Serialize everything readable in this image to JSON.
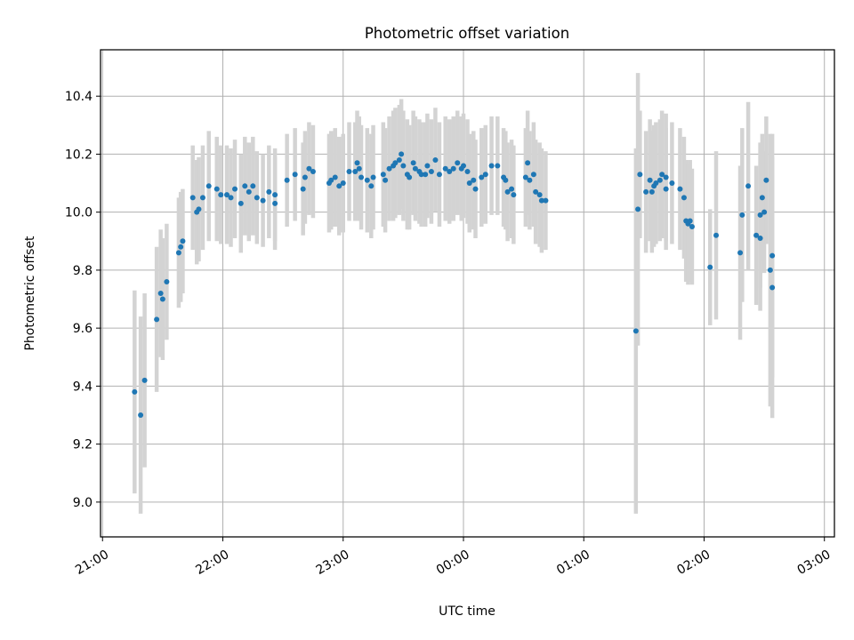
{
  "chart_data": {
    "type": "scatter",
    "title": "Photometric offset variation",
    "xlabel": "UTC time",
    "ylabel": "Photometric offset",
    "x_unit": "UTC",
    "x_ticks": [
      "21:00",
      "22:00",
      "23:00",
      "00:00",
      "01:00",
      "02:00",
      "03:00"
    ],
    "y_ticks": [
      "9.0",
      "9.2",
      "9.4",
      "9.6",
      "9.8",
      "10.0",
      "10.2",
      "10.4"
    ],
    "xlim": [
      "20:59",
      "03:05"
    ],
    "ylim": [
      8.88,
      10.56
    ],
    "grid": true,
    "colors": {
      "point": "#1f77b4",
      "errorbar": "#d3d3d3",
      "grid": "#b0b0b0"
    },
    "series": [
      {
        "points": [
          [
            "21:16",
            9.38,
            0.35
          ],
          [
            "21:19",
            9.3,
            0.34
          ],
          [
            "21:21",
            9.42,
            0.3
          ],
          [
            "21:27",
            9.63,
            0.25
          ],
          [
            "21:29",
            9.72,
            0.22
          ],
          [
            "21:30",
            9.7,
            0.21
          ],
          [
            "21:32",
            9.76,
            0.2
          ],
          [
            "21:38",
            9.86,
            0.19
          ],
          [
            "21:39",
            9.88,
            0.19
          ],
          [
            "21:40",
            9.9,
            0.18
          ],
          [
            "21:45",
            10.05,
            0.18
          ],
          [
            "21:47",
            10.0,
            0.18
          ],
          [
            "21:48",
            10.01,
            0.18
          ],
          [
            "21:50",
            10.05,
            0.18
          ],
          [
            "21:53",
            10.09,
            0.19
          ],
          [
            "21:57",
            10.08,
            0.18
          ],
          [
            "21:59",
            10.06,
            0.17
          ],
          [
            "22:02",
            10.06,
            0.17
          ],
          [
            "22:04",
            10.05,
            0.17
          ],
          [
            "22:06",
            10.08,
            0.17
          ],
          [
            "22:09",
            10.03,
            0.17
          ],
          [
            "22:11",
            10.09,
            0.17
          ],
          [
            "22:13",
            10.07,
            0.17
          ],
          [
            "22:15",
            10.09,
            0.17
          ],
          [
            "22:17",
            10.05,
            0.16
          ],
          [
            "22:20",
            10.04,
            0.16
          ],
          [
            "22:23",
            10.07,
            0.16
          ],
          [
            "22:26",
            10.06,
            0.16
          ],
          [
            "22:26",
            10.03,
            0.16
          ],
          [
            "22:32",
            10.11,
            0.16
          ],
          [
            "22:36",
            10.13,
            0.16
          ],
          [
            "22:40",
            10.08,
            0.16
          ],
          [
            "22:41",
            10.12,
            0.16
          ],
          [
            "22:43",
            10.15,
            0.16
          ],
          [
            "22:45",
            10.14,
            0.16
          ],
          [
            "22:53",
            10.1,
            0.17
          ],
          [
            "22:54",
            10.11,
            0.17
          ],
          [
            "22:56",
            10.12,
            0.17
          ],
          [
            "22:58",
            10.09,
            0.17
          ],
          [
            "23:00",
            10.1,
            0.17
          ],
          [
            "23:03",
            10.14,
            0.17
          ],
          [
            "23:06",
            10.14,
            0.17
          ],
          [
            "23:07",
            10.17,
            0.18
          ],
          [
            "23:08",
            10.15,
            0.18
          ],
          [
            "23:09",
            10.12,
            0.18
          ],
          [
            "23:12",
            10.11,
            0.18
          ],
          [
            "23:14",
            10.09,
            0.18
          ],
          [
            "23:15",
            10.12,
            0.18
          ],
          [
            "23:20",
            10.13,
            0.18
          ],
          [
            "23:21",
            10.11,
            0.18
          ],
          [
            "23:23",
            10.15,
            0.18
          ],
          [
            "23:25",
            10.16,
            0.19
          ],
          [
            "23:26",
            10.17,
            0.19
          ],
          [
            "23:28",
            10.18,
            0.19
          ],
          [
            "23:29",
            10.2,
            0.19
          ],
          [
            "23:30",
            10.16,
            0.19
          ],
          [
            "23:32",
            10.13,
            0.19
          ],
          [
            "23:33",
            10.12,
            0.18
          ],
          [
            "23:35",
            10.17,
            0.18
          ],
          [
            "23:36",
            10.15,
            0.18
          ],
          [
            "23:38",
            10.14,
            0.18
          ],
          [
            "23:39",
            10.13,
            0.18
          ],
          [
            "23:41",
            10.13,
            0.18
          ],
          [
            "23:42",
            10.16,
            0.18
          ],
          [
            "23:44",
            10.14,
            0.18
          ],
          [
            "23:46",
            10.18,
            0.18
          ],
          [
            "23:48",
            10.13,
            0.18
          ],
          [
            "23:51",
            10.15,
            0.18
          ],
          [
            "23:53",
            10.14,
            0.18
          ],
          [
            "23:55",
            10.15,
            0.18
          ],
          [
            "23:57",
            10.17,
            0.18
          ],
          [
            "23:59",
            10.15,
            0.18
          ],
          [
            "00:00",
            10.16,
            0.18
          ],
          [
            "00:02",
            10.14,
            0.18
          ],
          [
            "00:03",
            10.1,
            0.17
          ],
          [
            "00:05",
            10.11,
            0.17
          ],
          [
            "00:06",
            10.08,
            0.17
          ],
          [
            "00:09",
            10.12,
            0.17
          ],
          [
            "00:11",
            10.13,
            0.17
          ],
          [
            "00:14",
            10.16,
            0.17
          ],
          [
            "00:17",
            10.16,
            0.17
          ],
          [
            "00:20",
            10.12,
            0.17
          ],
          [
            "00:21",
            10.11,
            0.17
          ],
          [
            "00:22",
            10.07,
            0.17
          ],
          [
            "00:24",
            10.08,
            0.17
          ],
          [
            "00:25",
            10.06,
            0.17
          ],
          [
            "00:31",
            10.12,
            0.17
          ],
          [
            "00:32",
            10.17,
            0.18
          ],
          [
            "00:33",
            10.11,
            0.17
          ],
          [
            "00:35",
            10.13,
            0.18
          ],
          [
            "00:36",
            10.07,
            0.18
          ],
          [
            "00:38",
            10.06,
            0.18
          ],
          [
            "00:39",
            10.04,
            0.18
          ],
          [
            "00:41",
            10.04,
            0.17
          ],
          [
            "01:26",
            9.59,
            0.63
          ],
          [
            "01:27",
            10.01,
            0.47
          ],
          [
            "01:28",
            10.13,
            0.22
          ],
          [
            "01:31",
            10.07,
            0.21
          ],
          [
            "01:33",
            10.11,
            0.21
          ],
          [
            "01:34",
            10.07,
            0.21
          ],
          [
            "01:35",
            10.09,
            0.21
          ],
          [
            "01:36",
            10.1,
            0.21
          ],
          [
            "01:38",
            10.11,
            0.21
          ],
          [
            "01:39",
            10.13,
            0.22
          ],
          [
            "01:41",
            10.12,
            0.22
          ],
          [
            "01:41",
            10.08,
            0.21
          ],
          [
            "01:44",
            10.1,
            0.21
          ],
          [
            "01:48",
            10.08,
            0.21
          ],
          [
            "01:50",
            10.05,
            0.21
          ],
          [
            "01:51",
            9.97,
            0.21
          ],
          [
            "01:52",
            9.96,
            0.21
          ],
          [
            "01:53",
            9.97,
            0.21
          ],
          [
            "01:54",
            9.95,
            0.2
          ],
          [
            "02:03",
            9.81,
            0.2
          ],
          [
            "02:06",
            9.92,
            0.29
          ],
          [
            "02:18",
            9.86,
            0.3
          ],
          [
            "02:19",
            9.99,
            0.3
          ],
          [
            "02:22",
            10.09,
            0.29
          ],
          [
            "02:26",
            9.92,
            0.24
          ],
          [
            "02:28",
            9.99,
            0.25
          ],
          [
            "02:28",
            9.91,
            0.25
          ],
          [
            "02:29",
            10.05,
            0.22
          ],
          [
            "02:30",
            10.0,
            0.21
          ],
          [
            "02:31",
            10.11,
            0.22
          ],
          [
            "02:33",
            9.8,
            0.47
          ],
          [
            "02:34",
            9.74,
            0.45
          ],
          [
            "02:34",
            9.85,
            0.42
          ]
        ]
      }
    ]
  }
}
